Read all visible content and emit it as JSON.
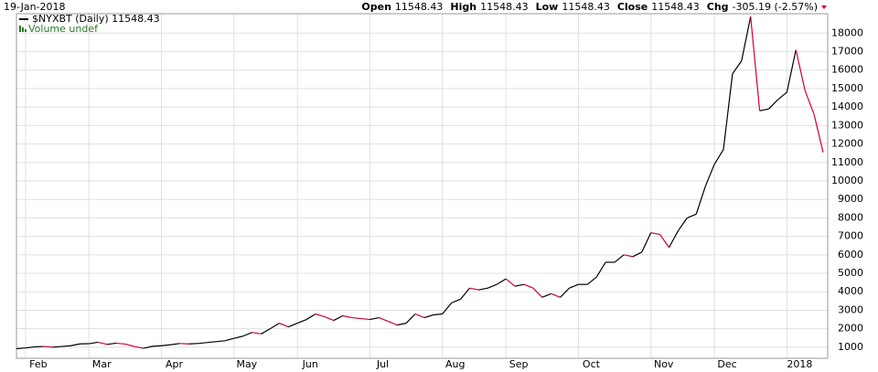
{
  "chart_data": {
    "type": "line",
    "date": "19-Jan-2018",
    "quote": [
      {
        "label": "Open",
        "value": "11548.43"
      },
      {
        "label": "High",
        "value": "11548.43"
      },
      {
        "label": "Low",
        "value": "11548.43"
      },
      {
        "label": "Close",
        "value": "11548.43"
      },
      {
        "label": "Chg",
        "value": "-305.19 (-2.57%)"
      }
    ],
    "volume_label": "Volume undef",
    "categories": [
      null,
      "Feb",
      null,
      null,
      null,
      null,
      null,
      null,
      "Mar",
      null,
      null,
      null,
      null,
      null,
      null,
      null,
      "Apr",
      null,
      null,
      null,
      null,
      null,
      null,
      null,
      "May",
      null,
      null,
      null,
      null,
      null,
      null,
      "Jun",
      null,
      null,
      null,
      null,
      null,
      null,
      null,
      "Jul",
      null,
      null,
      null,
      null,
      null,
      null,
      null,
      "Aug",
      null,
      null,
      null,
      null,
      null,
      null,
      "Sep",
      null,
      null,
      null,
      null,
      null,
      null,
      null,
      "Oct",
      null,
      null,
      null,
      null,
      null,
      null,
      null,
      "Nov",
      null,
      null,
      null,
      null,
      null,
      null,
      "Dec",
      null,
      null,
      null,
      null,
      null,
      null,
      null,
      "2018",
      null,
      null,
      null,
      null
    ],
    "series": [
      {
        "name": "$NYXBT (Daily) 11548.43",
        "color": "#000000",
        "down_color": "#cc0033",
        "values": [
          920,
          960,
          1020,
          1040,
          1000,
          1040,
          1080,
          1180,
          1190,
          1270,
          1150,
          1220,
          1170,
          1040,
          940,
          1050,
          1080,
          1130,
          1200,
          1180,
          1200,
          1250,
          1300,
          1350,
          1480,
          1600,
          1800,
          1720,
          2000,
          2300,
          2100,
          2300,
          2500,
          2800,
          2650,
          2450,
          2700,
          2600,
          2550,
          2500,
          2600,
          2400,
          2200,
          2300,
          2800,
          2600,
          2750,
          2800,
          3400,
          3600,
          4200,
          4100,
          4200,
          4400,
          4700,
          4300,
          4400,
          4200,
          3700,
          3900,
          3700,
          4200,
          4400,
          4400,
          4800,
          5600,
          5600,
          6000,
          5900,
          6150,
          7200,
          7100,
          6400,
          7300,
          8000,
          8200,
          9700,
          10900,
          11700,
          15800,
          16500,
          18900,
          13800,
          13900,
          14400,
          14800,
          17100,
          14900,
          13600,
          11548.43
        ]
      }
    ],
    "ylim": [
      400,
      19400
    ],
    "yticks": [
      1000,
      2000,
      3000,
      4000,
      5000,
      6000,
      7000,
      8000,
      9000,
      10000,
      11000,
      12000,
      13000,
      14000,
      15000,
      16000,
      17000,
      18000
    ],
    "grid": true
  }
}
